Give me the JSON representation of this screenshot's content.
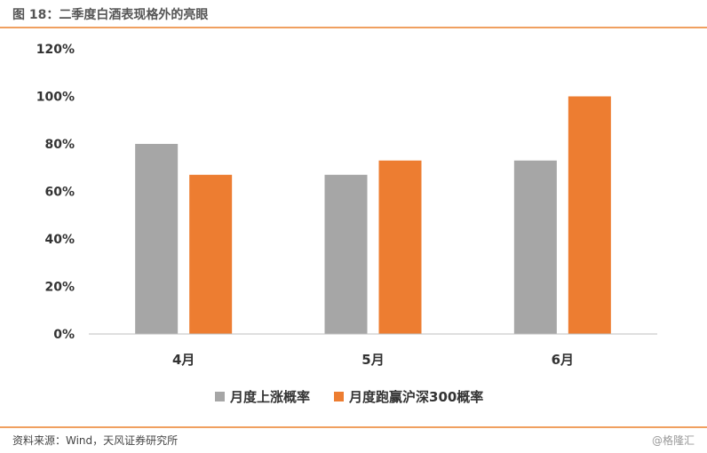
{
  "header": {
    "title": "图 18：二季度白酒表现格外的亮眼"
  },
  "footer": {
    "source": "资料来源：Wind，天风证券研究所",
    "watermark": "@格隆汇"
  },
  "colors": {
    "series1": "#a6a6a6",
    "series2": "#ed7d31",
    "accent_rule": "#f0a060"
  },
  "chart_data": {
    "type": "bar",
    "categories": [
      "4月",
      "5月",
      "6月"
    ],
    "series": [
      {
        "name": "月度上涨概率",
        "values": [
          80,
          67,
          73
        ]
      },
      {
        "name": "月度跑赢沪深300概率",
        "values": [
          67,
          73,
          100
        ]
      }
    ],
    "ylim": [
      0,
      120
    ],
    "yticks": [
      "0%",
      "20%",
      "40%",
      "60%",
      "80%",
      "100%",
      "120%"
    ],
    "legend": "bottom",
    "grid": false
  }
}
